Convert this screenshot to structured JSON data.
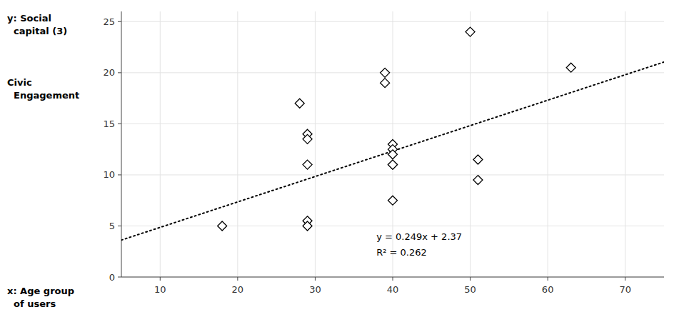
{
  "chart_data": {
    "type": "scatter",
    "x": [
      18,
      28,
      29,
      29,
      29,
      29,
      29,
      39,
      39,
      40,
      40,
      40,
      40,
      40,
      40,
      50,
      51,
      51,
      63
    ],
    "values": [
      5,
      17,
      14,
      13.5,
      11,
      5.5,
      5,
      20,
      19,
      13,
      12.5,
      12,
      11,
      11,
      7.5,
      24,
      11.5,
      9.5,
      20.5
    ],
    "color": "black",
    "marker": "diamond",
    "trend_line": {
      "x": [
        5,
        75
      ],
      "values": [
        3.615,
        21.045
      ],
      "color": "black",
      "line_style": "dotted"
    },
    "annotations": [
      "y = 0.249x + 2.37",
      "R² = 0.262"
    ],
    "y_label": [
      "y: Social",
      "  capital (3)",
      "Civic",
      "  Engagement"
    ],
    "x_label": [
      "x: Age group",
      "  of users"
    ],
    "xlim": [
      5,
      75
    ],
    "ylim": [
      0,
      26
    ],
    "xticks": [
      10,
      20,
      30,
      40,
      50,
      60,
      70
    ],
    "yticks": [
      0,
      5,
      10,
      15,
      20,
      25
    ],
    "grid": true
  }
}
